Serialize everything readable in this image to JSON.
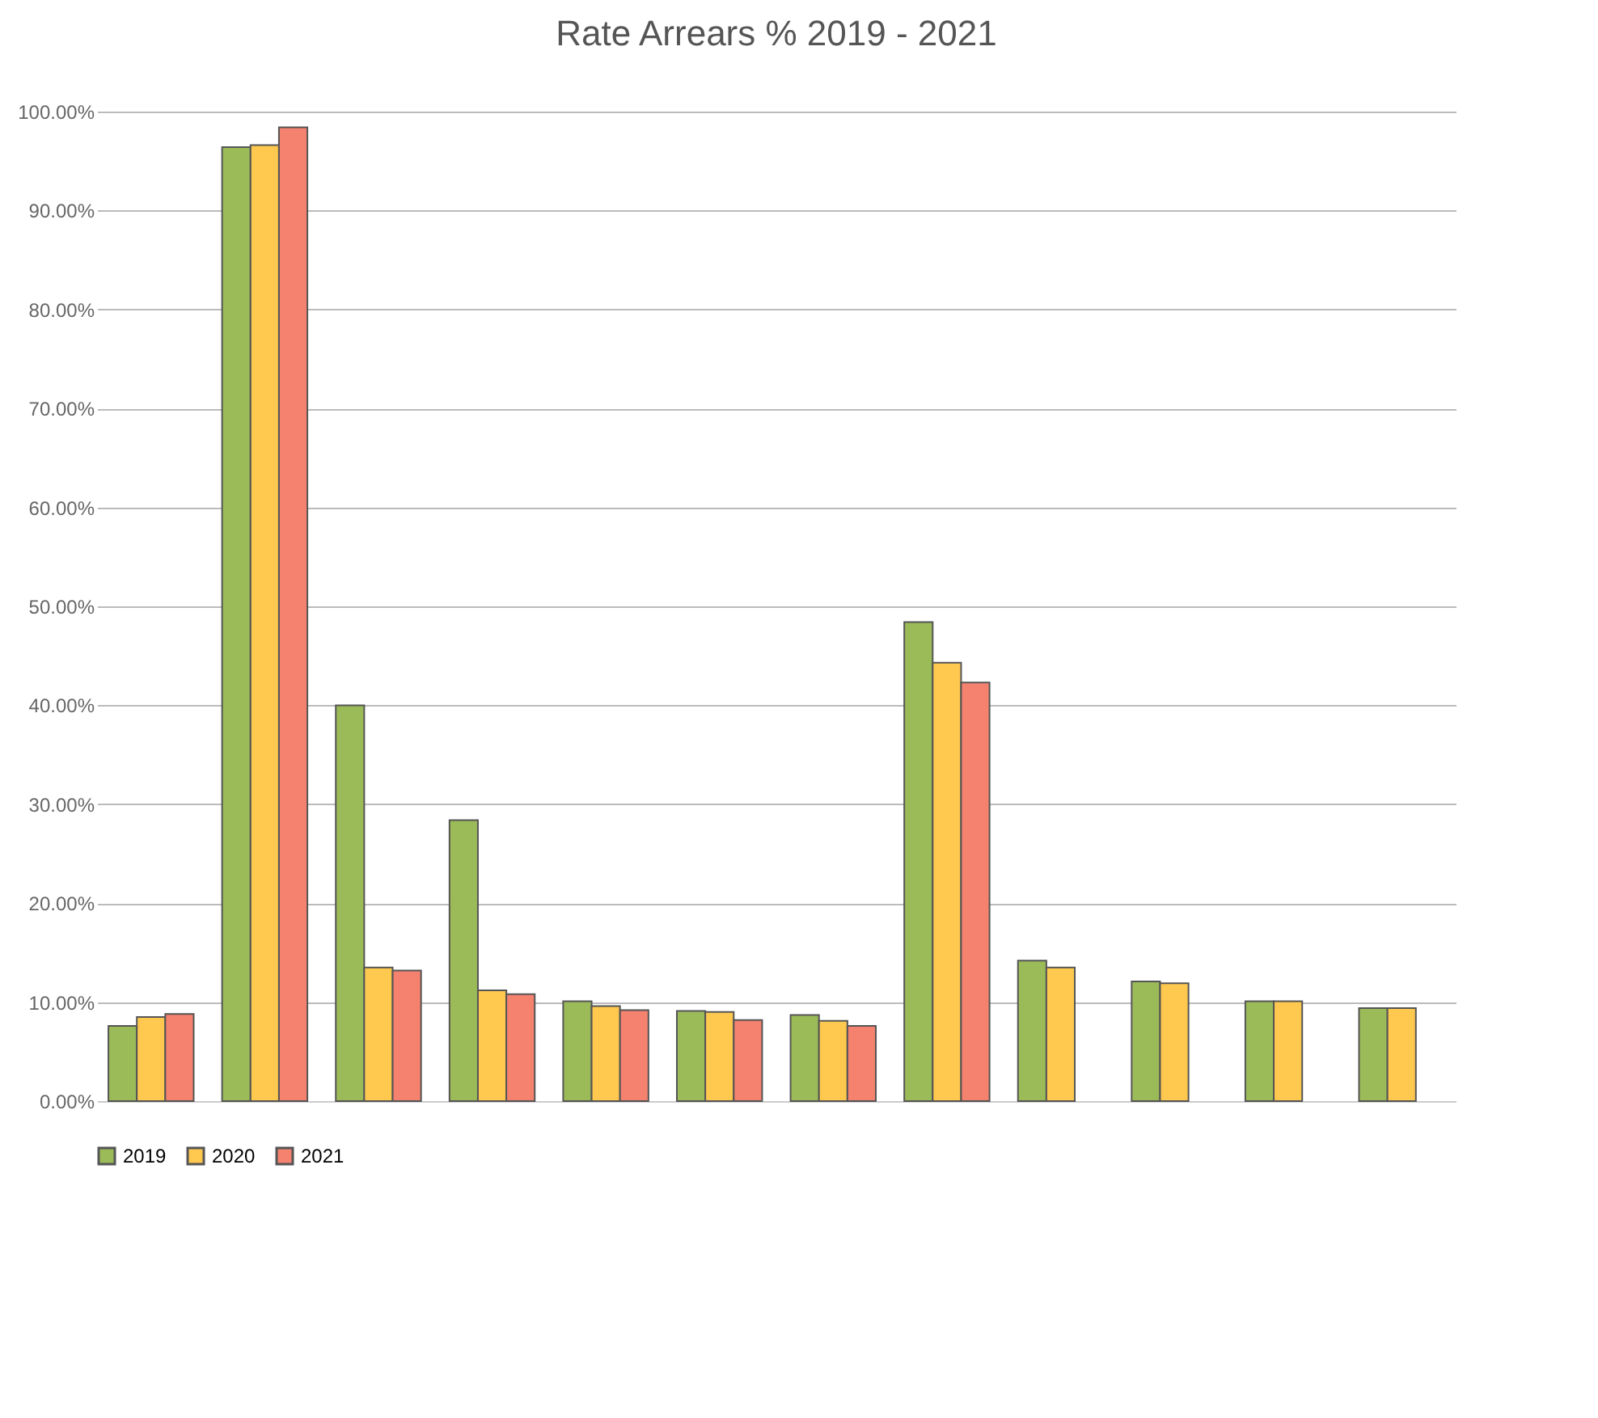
{
  "chart_data": {
    "type": "bar",
    "title": "Rate Arrears % 2019 - 2021",
    "categories": [
      null,
      null,
      null,
      null,
      null,
      null,
      null,
      null,
      null,
      null,
      null,
      null
    ],
    "series": [
      {
        "name": "2019",
        "color": "#9bbb59",
        "values": [
          7.6,
          96.4,
          40.0,
          28.4,
          10.1,
          9.1,
          8.7,
          48.4,
          14.2,
          12.1,
          10.1,
          9.4
        ]
      },
      {
        "name": "2020",
        "color": "#ffc94f",
        "values": [
          8.5,
          96.6,
          13.5,
          11.2,
          9.6,
          9.0,
          8.1,
          44.3,
          13.5,
          11.9,
          10.1,
          9.4
        ]
      },
      {
        "name": "2021",
        "color": "#f4826f",
        "values": [
          8.8,
          98.4,
          13.2,
          10.8,
          9.2,
          8.2,
          7.6,
          42.3,
          null,
          null,
          null,
          null
        ]
      }
    ],
    "ylim": [
      0,
      100
    ],
    "yticks": [
      {
        "value": 0,
        "label": "0.00%"
      },
      {
        "value": 10,
        "label": "10.00%"
      },
      {
        "value": 20,
        "label": "20.00%"
      },
      {
        "value": 30,
        "label": "30.00%"
      },
      {
        "value": 40,
        "label": "40.00%"
      },
      {
        "value": 50,
        "label": "50.00%"
      },
      {
        "value": 60,
        "label": "60.00%"
      },
      {
        "value": 70,
        "label": "70.00%"
      },
      {
        "value": 80,
        "label": "80.00%"
      },
      {
        "value": 90,
        "label": "90.00%"
      },
      {
        "value": 100,
        "label": "100.00%"
      }
    ],
    "grid": "y",
    "legend": "bottom"
  }
}
